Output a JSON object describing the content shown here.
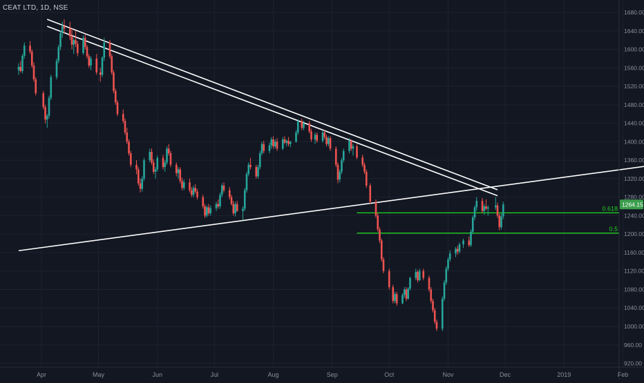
{
  "header": {
    "symbol_title": "CEAT LTD, 1D, NSE"
  },
  "colors": {
    "background": "#131722",
    "grid": "#1e2230",
    "up": "#26a69a",
    "up_bright": "#3ec95c",
    "down": "#ef5350",
    "trendline": "#ffffff",
    "fib": "#1fd11f",
    "axis_text": "#8a8f9c",
    "price_badge": "#3a9d4c"
  },
  "price_axis": {
    "ticks": [
      "1680.00",
      "1640.00",
      "1600.00",
      "1560.00",
      "1520.00",
      "1480.00",
      "1440.00",
      "1400.00",
      "1360.00",
      "1320.00",
      "1280.00",
      "1240.00",
      "1200.00",
      "1160.00",
      "1120.00",
      "1080.00",
      "1040.00",
      "1000.00",
      "960.00",
      "920.00"
    ],
    "current_price": "1264.15"
  },
  "time_axis": {
    "labels": [
      "Apr",
      "May",
      "Jun",
      "Jul",
      "Aug",
      "Sep",
      "Oct",
      "Nov",
      "Dec",
      "2019",
      "Feb"
    ]
  },
  "annotations": {
    "fib_0618_label": "0.618",
    "fib_05_label": "0.5"
  },
  "chart_data": {
    "type": "candlestick",
    "title": "CEAT LTD, 1D, NSE",
    "interval": "1D",
    "exchange": "NSE",
    "x_range": [
      "2018-03-20",
      "2019-02-15"
    ],
    "y_range": [
      920,
      1690
    ],
    "grid": true,
    "current_price": 1264.15,
    "fib_levels": [
      {
        "label": "0.618",
        "price": 1246,
        "from": "2018-09-14",
        "to": "2019-02-15"
      },
      {
        "label": "0.5",
        "price": 1202,
        "from": "2018-09-14",
        "to": "2019-02-15"
      }
    ],
    "trendlines": [
      {
        "from": [
          "2018-03-20",
          1164
        ],
        "to": [
          "2019-02-15",
          1348
        ]
      },
      {
        "from": [
          "2018-04-04",
          1665
        ],
        "to": [
          "2018-11-27",
          1296
        ]
      },
      {
        "from": [
          "2018-04-04",
          1650
        ],
        "to": [
          "2018-11-27",
          1283
        ]
      }
    ],
    "candles": [
      [
        "2018-03-20",
        1555,
        1570,
        1545,
        1562
      ],
      [
        "2018-03-21",
        1562,
        1575,
        1550,
        1553
      ],
      [
        "2018-03-22",
        1553,
        1590,
        1548,
        1586
      ],
      [
        "2018-03-23",
        1586,
        1615,
        1580,
        1608
      ],
      [
        "2018-03-26",
        1608,
        1618,
        1590,
        1595
      ],
      [
        "2018-03-27",
        1595,
        1600,
        1560,
        1565
      ],
      [
        "2018-03-28",
        1565,
        1572,
        1530,
        1535
      ],
      [
        "2018-03-29",
        1535,
        1540,
        1500,
        1505
      ],
      [
        "2018-04-02",
        1505,
        1510,
        1470,
        1475
      ],
      [
        "2018-04-03",
        1475,
        1480,
        1440,
        1448
      ],
      [
        "2018-04-04",
        1448,
        1460,
        1430,
        1456
      ],
      [
        "2018-04-05",
        1456,
        1500,
        1450,
        1495
      ],
      [
        "2018-04-06",
        1495,
        1545,
        1490,
        1540
      ],
      [
        "2018-04-09",
        1540,
        1580,
        1535,
        1575
      ],
      [
        "2018-04-10",
        1575,
        1610,
        1570,
        1605
      ],
      [
        "2018-04-11",
        1605,
        1640,
        1598,
        1635
      ],
      [
        "2018-04-12",
        1635,
        1660,
        1625,
        1650
      ],
      [
        "2018-04-13",
        1650,
        1665,
        1635,
        1645
      ],
      [
        "2018-04-16",
        1645,
        1660,
        1620,
        1628
      ],
      [
        "2018-04-17",
        1628,
        1645,
        1600,
        1610
      ],
      [
        "2018-04-18",
        1610,
        1625,
        1590,
        1620
      ],
      [
        "2018-04-19",
        1620,
        1640,
        1605,
        1612
      ],
      [
        "2018-04-20",
        1612,
        1618,
        1585,
        1592
      ],
      [
        "2018-04-23",
        1592,
        1630,
        1588,
        1625
      ],
      [
        "2018-04-24",
        1625,
        1632,
        1600,
        1605
      ],
      [
        "2018-04-25",
        1605,
        1610,
        1580,
        1585
      ],
      [
        "2018-04-26",
        1585,
        1590,
        1560,
        1565
      ],
      [
        "2018-04-27",
        1565,
        1585,
        1555,
        1580
      ],
      [
        "2018-04-30",
        1580,
        1590,
        1545,
        1550
      ],
      [
        "2018-05-02",
        1550,
        1560,
        1530,
        1545
      ],
      [
        "2018-05-03",
        1545,
        1585,
        1540,
        1582
      ],
      [
        "2018-05-04",
        1582,
        1625,
        1575,
        1615
      ],
      [
        "2018-05-07",
        1615,
        1620,
        1580,
        1585
      ],
      [
        "2018-05-08",
        1585,
        1590,
        1545,
        1550
      ],
      [
        "2018-05-09",
        1550,
        1555,
        1505,
        1510
      ],
      [
        "2018-05-10",
        1510,
        1515,
        1480,
        1485
      ],
      [
        "2018-05-11",
        1485,
        1490,
        1455,
        1460
      ],
      [
        "2018-05-14",
        1460,
        1470,
        1440,
        1445
      ],
      [
        "2018-05-15",
        1445,
        1450,
        1415,
        1420
      ],
      [
        "2018-05-16",
        1420,
        1430,
        1395,
        1400
      ],
      [
        "2018-05-17",
        1400,
        1405,
        1370,
        1375
      ],
      [
        "2018-05-18",
        1375,
        1380,
        1345,
        1350
      ],
      [
        "2018-05-21",
        1350,
        1360,
        1330,
        1340
      ],
      [
        "2018-05-22",
        1340,
        1345,
        1305,
        1310
      ],
      [
        "2018-05-23",
        1310,
        1320,
        1290,
        1298
      ],
      [
        "2018-05-24",
        1298,
        1325,
        1292,
        1320
      ],
      [
        "2018-05-25",
        1320,
        1365,
        1315,
        1360
      ],
      [
        "2018-05-28",
        1360,
        1385,
        1355,
        1378
      ],
      [
        "2018-05-29",
        1378,
        1385,
        1350,
        1355
      ],
      [
        "2018-05-30",
        1355,
        1362,
        1330,
        1335
      ],
      [
        "2018-05-31",
        1335,
        1345,
        1320,
        1340
      ],
      [
        "2018-06-01",
        1340,
        1370,
        1335,
        1365
      ],
      [
        "2018-06-04",
        1365,
        1372,
        1340,
        1345
      ],
      [
        "2018-06-05",
        1345,
        1360,
        1335,
        1355
      ],
      [
        "2018-06-06",
        1355,
        1390,
        1350,
        1385
      ],
      [
        "2018-06-07",
        1385,
        1395,
        1370,
        1375
      ],
      [
        "2018-06-08",
        1375,
        1380,
        1345,
        1350
      ],
      [
        "2018-06-11",
        1350,
        1355,
        1325,
        1332
      ],
      [
        "2018-06-12",
        1332,
        1345,
        1320,
        1340
      ],
      [
        "2018-06-13",
        1340,
        1345,
        1310,
        1315
      ],
      [
        "2018-06-14",
        1315,
        1322,
        1295,
        1300
      ],
      [
        "2018-06-15",
        1300,
        1318,
        1295,
        1312
      ],
      [
        "2018-06-18",
        1312,
        1320,
        1290,
        1295
      ],
      [
        "2018-06-19",
        1295,
        1302,
        1280,
        1285
      ],
      [
        "2018-06-20",
        1285,
        1305,
        1280,
        1300
      ],
      [
        "2018-06-21",
        1300,
        1308,
        1288,
        1292
      ],
      [
        "2018-06-22",
        1292,
        1298,
        1275,
        1280
      ],
      [
        "2018-06-25",
        1280,
        1285,
        1255,
        1260
      ],
      [
        "2018-06-26",
        1260,
        1265,
        1235,
        1240
      ],
      [
        "2018-06-27",
        1240,
        1262,
        1236,
        1258
      ],
      [
        "2018-06-28",
        1258,
        1265,
        1240,
        1245
      ],
      [
        "2018-06-29",
        1245,
        1262,
        1240,
        1256
      ],
      [
        "2018-07-02",
        1256,
        1270,
        1250,
        1265
      ],
      [
        "2018-07-03",
        1265,
        1275,
        1255,
        1260
      ],
      [
        "2018-07-04",
        1260,
        1290,
        1255,
        1285
      ],
      [
        "2018-07-05",
        1285,
        1310,
        1280,
        1305
      ],
      [
        "2018-07-06",
        1305,
        1312,
        1290,
        1295
      ],
      [
        "2018-07-09",
        1295,
        1302,
        1275,
        1280
      ],
      [
        "2018-07-10",
        1280,
        1285,
        1262,
        1265
      ],
      [
        "2018-07-11",
        1265,
        1272,
        1240,
        1245
      ],
      [
        "2018-07-12",
        1245,
        1270,
        1238,
        1265
      ],
      [
        "2018-07-13",
        1265,
        1272,
        1248,
        1250
      ],
      [
        "2018-07-16",
        1250,
        1260,
        1230,
        1255
      ],
      [
        "2018-07-17",
        1255,
        1300,
        1250,
        1295
      ],
      [
        "2018-07-18",
        1295,
        1335,
        1290,
        1330
      ],
      [
        "2018-07-19",
        1330,
        1355,
        1325,
        1350
      ],
      [
        "2018-07-20",
        1350,
        1365,
        1340,
        1345
      ],
      [
        "2018-07-23",
        1345,
        1350,
        1320,
        1325
      ],
      [
        "2018-07-24",
        1325,
        1350,
        1320,
        1345
      ],
      [
        "2018-07-25",
        1345,
        1380,
        1340,
        1375
      ],
      [
        "2018-07-26",
        1375,
        1400,
        1370,
        1395
      ],
      [
        "2018-07-27",
        1395,
        1402,
        1375,
        1380
      ],
      [
        "2018-07-30",
        1380,
        1398,
        1375,
        1392
      ],
      [
        "2018-07-31",
        1392,
        1410,
        1385,
        1405
      ],
      [
        "2018-08-01",
        1405,
        1412,
        1385,
        1390
      ],
      [
        "2018-08-02",
        1390,
        1405,
        1385,
        1400
      ],
      [
        "2018-08-03",
        1400,
        1408,
        1380,
        1385
      ],
      [
        "2018-08-06",
        1385,
        1410,
        1382,
        1405
      ],
      [
        "2018-08-07",
        1405,
        1412,
        1395,
        1398
      ],
      [
        "2018-08-08",
        1398,
        1405,
        1390,
        1402
      ],
      [
        "2018-08-09",
        1402,
        1410,
        1390,
        1395
      ],
      [
        "2018-08-10",
        1395,
        1402,
        1388,
        1400
      ],
      [
        "2018-08-13",
        1400,
        1425,
        1398,
        1420
      ],
      [
        "2018-08-14",
        1420,
        1448,
        1415,
        1445
      ],
      [
        "2018-08-16",
        1445,
        1450,
        1425,
        1430
      ],
      [
        "2018-08-17",
        1430,
        1445,
        1425,
        1440
      ],
      [
        "2018-08-20",
        1440,
        1445,
        1418,
        1422
      ],
      [
        "2018-08-21",
        1422,
        1428,
        1400,
        1405
      ],
      [
        "2018-08-23",
        1405,
        1420,
        1395,
        1415
      ],
      [
        "2018-08-24",
        1415,
        1420,
        1398,
        1402
      ],
      [
        "2018-08-27",
        1402,
        1425,
        1398,
        1420
      ],
      [
        "2018-08-28",
        1420,
        1425,
        1405,
        1410
      ],
      [
        "2018-08-29",
        1410,
        1415,
        1390,
        1395
      ],
      [
        "2018-08-30",
        1395,
        1412,
        1390,
        1408
      ],
      [
        "2018-08-31",
        1408,
        1412,
        1380,
        1385
      ],
      [
        "2018-09-03",
        1385,
        1390,
        1345,
        1350
      ],
      [
        "2018-09-04",
        1350,
        1355,
        1310,
        1318
      ],
      [
        "2018-09-05",
        1318,
        1340,
        1312,
        1335
      ],
      [
        "2018-09-06",
        1335,
        1365,
        1330,
        1360
      ],
      [
        "2018-09-07",
        1360,
        1385,
        1355,
        1380
      ],
      [
        "2018-09-10",
        1380,
        1408,
        1375,
        1402
      ],
      [
        "2018-09-11",
        1402,
        1405,
        1380,
        1385
      ],
      [
        "2018-09-12",
        1385,
        1395,
        1370,
        1390
      ],
      [
        "2018-09-14",
        1390,
        1395,
        1362,
        1366
      ],
      [
        "2018-09-17",
        1366,
        1372,
        1345,
        1350
      ],
      [
        "2018-09-18",
        1350,
        1355,
        1330,
        1335
      ],
      [
        "2018-09-19",
        1335,
        1340,
        1300,
        1305
      ],
      [
        "2018-09-21",
        1305,
        1310,
        1265,
        1270
      ],
      [
        "2018-09-24",
        1270,
        1275,
        1235,
        1240
      ],
      [
        "2018-09-25",
        1240,
        1245,
        1205,
        1210
      ],
      [
        "2018-09-26",
        1210,
        1215,
        1180,
        1186
      ],
      [
        "2018-09-27",
        1186,
        1190,
        1140,
        1145
      ],
      [
        "2018-09-28",
        1145,
        1150,
        1115,
        1120
      ],
      [
        "2018-10-01",
        1120,
        1125,
        1080,
        1085
      ],
      [
        "2018-10-03",
        1085,
        1090,
        1050,
        1055
      ],
      [
        "2018-10-04",
        1055,
        1075,
        1050,
        1070
      ],
      [
        "2018-10-05",
        1070,
        1075,
        1045,
        1050
      ],
      [
        "2018-10-08",
        1050,
        1072,
        1048,
        1068
      ],
      [
        "2018-10-09",
        1068,
        1085,
        1062,
        1080
      ],
      [
        "2018-10-10",
        1080,
        1085,
        1055,
        1060
      ],
      [
        "2018-10-11",
        1060,
        1085,
        1058,
        1082
      ],
      [
        "2018-10-12",
        1082,
        1108,
        1078,
        1105
      ],
      [
        "2018-10-15",
        1105,
        1125,
        1100,
        1118
      ],
      [
        "2018-10-16",
        1118,
        1122,
        1095,
        1100
      ],
      [
        "2018-10-17",
        1100,
        1125,
        1098,
        1120
      ],
      [
        "2018-10-19",
        1120,
        1125,
        1100,
        1105
      ],
      [
        "2018-10-22",
        1105,
        1110,
        1075,
        1080
      ],
      [
        "2018-10-23",
        1080,
        1085,
        1050,
        1055
      ],
      [
        "2018-10-24",
        1055,
        1060,
        1030,
        1035
      ],
      [
        "2018-10-25",
        1035,
        1040,
        1005,
        1010
      ],
      [
        "2018-10-26",
        1010,
        1015,
        990,
        995
      ],
      [
        "2018-10-29",
        995,
        1065,
        990,
        1060
      ],
      [
        "2018-10-30",
        1060,
        1100,
        1055,
        1095
      ],
      [
        "2018-10-31",
        1095,
        1130,
        1090,
        1125
      ],
      [
        "2018-11-01",
        1125,
        1150,
        1120,
        1145
      ],
      [
        "2018-11-02",
        1145,
        1165,
        1140,
        1158
      ],
      [
        "2018-11-05",
        1158,
        1172,
        1150,
        1168
      ],
      [
        "2018-11-06",
        1168,
        1175,
        1155,
        1162
      ],
      [
        "2018-11-07",
        1162,
        1182,
        1158,
        1178
      ],
      [
        "2018-11-09",
        1178,
        1190,
        1170,
        1186
      ],
      [
        "2018-11-12",
        1186,
        1195,
        1172,
        1176
      ],
      [
        "2018-11-13",
        1176,
        1210,
        1172,
        1205
      ],
      [
        "2018-11-14",
        1205,
        1240,
        1200,
        1236
      ],
      [
        "2018-11-15",
        1236,
        1262,
        1230,
        1258
      ],
      [
        "2018-11-16",
        1258,
        1280,
        1250,
        1272
      ],
      [
        "2018-11-19",
        1272,
        1278,
        1245,
        1250
      ],
      [
        "2018-11-20",
        1250,
        1265,
        1242,
        1260
      ],
      [
        "2018-11-21",
        1260,
        1275,
        1252,
        1255
      ],
      [
        "2018-11-22",
        1255,
        1262,
        1240,
        1258
      ],
      [
        "2018-11-26",
        1258,
        1280,
        1252,
        1262
      ],
      [
        "2018-11-27",
        1262,
        1268,
        1235,
        1240
      ],
      [
        "2018-11-28",
        1240,
        1245,
        1208,
        1215
      ],
      [
        "2018-11-29",
        1215,
        1245,
        1210,
        1238
      ],
      [
        "2018-11-30",
        1238,
        1270,
        1232,
        1264
      ]
    ]
  }
}
